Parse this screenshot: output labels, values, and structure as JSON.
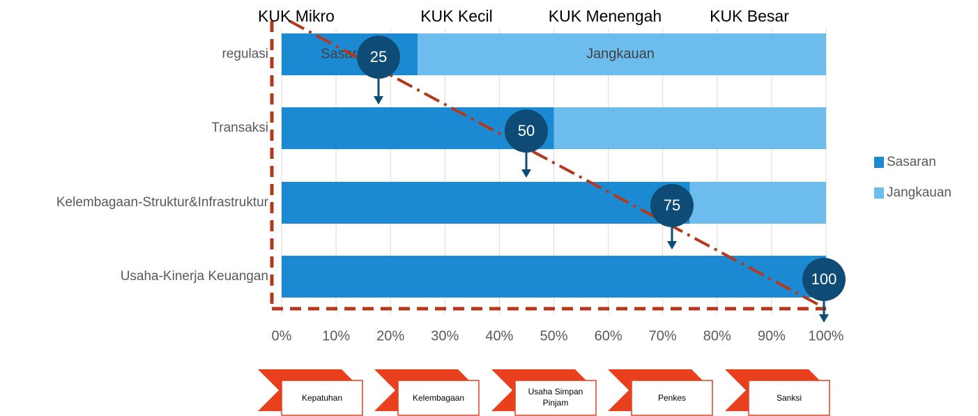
{
  "chart_data": {
    "type": "bar",
    "orientation": "horizontal",
    "stacked": true,
    "categories": [
      "regulasi",
      "Transaksi",
      "Kelembagaan-Struktur&Infrastruktur",
      "Usaha-Kinerja Keuangan"
    ],
    "series": [
      {
        "name": "Sasaran",
        "color": "#1b8ad3",
        "values": [
          25,
          50,
          75,
          100
        ]
      },
      {
        "name": "Jangkauan",
        "color": "#6cbdee",
        "values": [
          75,
          50,
          25,
          0
        ]
      }
    ],
    "xlim": [
      0,
      100
    ],
    "xticks": [
      {
        "value": 0,
        "label": "0%"
      },
      {
        "value": 10,
        "label": "10%"
      },
      {
        "value": 20,
        "label": "20%"
      },
      {
        "value": 30,
        "label": "30%"
      },
      {
        "value": 40,
        "label": "40%"
      },
      {
        "value": 50,
        "label": "50%"
      },
      {
        "value": 60,
        "label": "60%"
      },
      {
        "value": 70,
        "label": "70%"
      },
      {
        "value": 80,
        "label": "80%"
      },
      {
        "value": 90,
        "label": "90%"
      },
      {
        "value": 100,
        "label": "100%"
      }
    ],
    "grid": true,
    "legend": "right",
    "header_labels": [
      "KUK Mikro",
      "KUK Kecil",
      "KUK Menengah",
      "KUK Besar"
    ],
    "stages": [
      "Kepatuhan",
      "Kelembagaan",
      "Usaha Simpan Pinjam",
      "Penkes",
      "Sanksi"
    ]
  }
}
